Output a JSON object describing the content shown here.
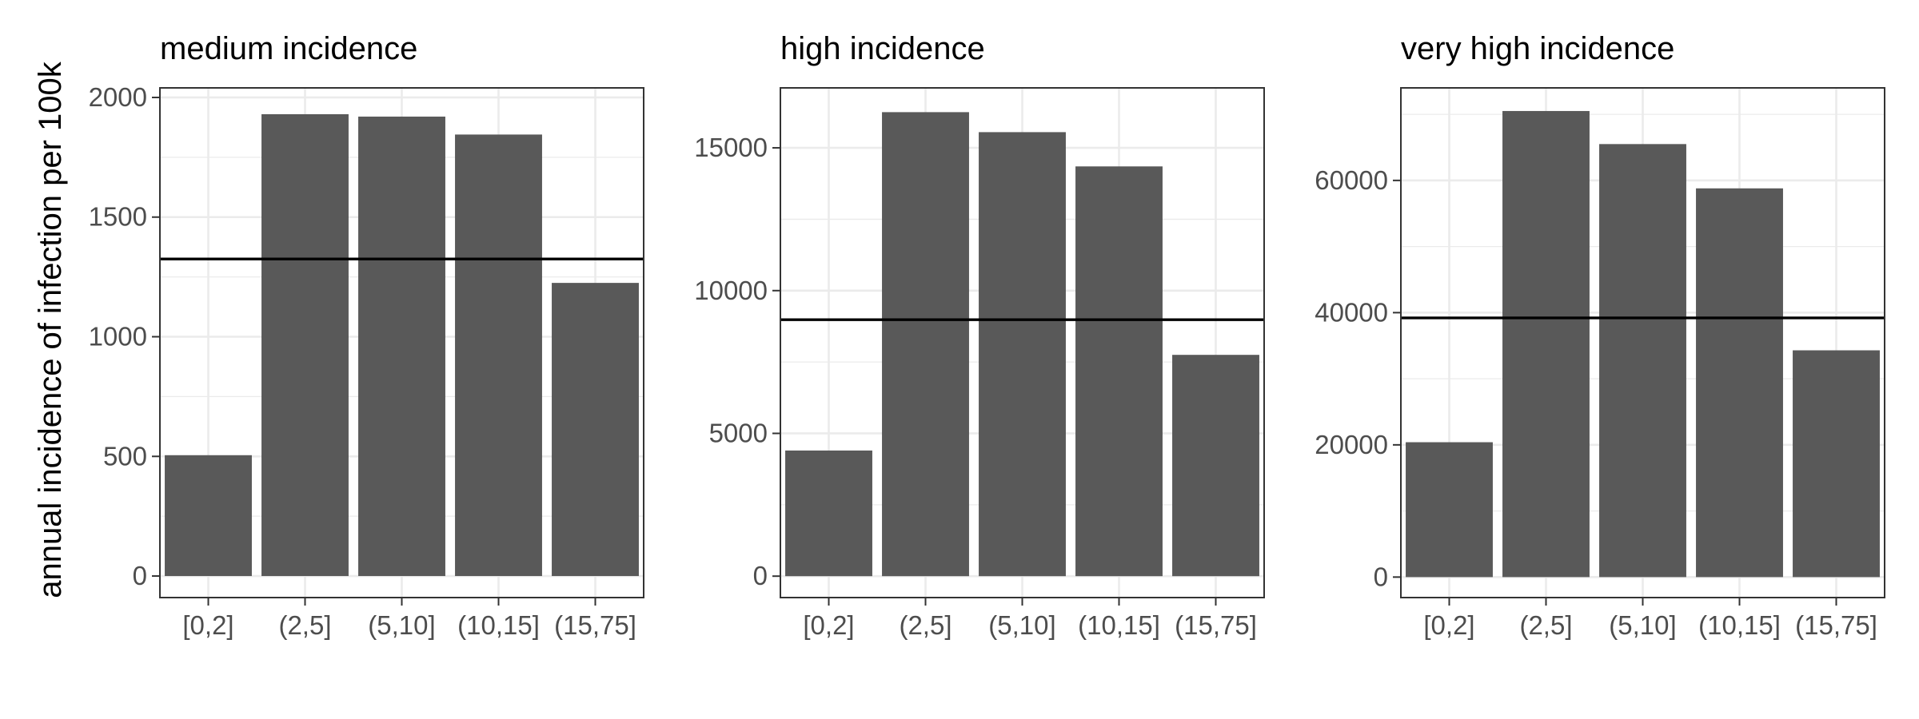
{
  "chart_data": [
    {
      "type": "bar",
      "title": "medium incidence",
      "ylabel": "annual incidence of infection per 100k",
      "xlabel": "",
      "categories": [
        "[0,2]",
        "(2,5]",
        "(5,10]",
        "(10,15]",
        "(15,75]"
      ],
      "values": [
        505,
        1930,
        1920,
        1845,
        1225
      ],
      "ylim": [
        -90,
        2040
      ],
      "yticks": [
        0,
        500,
        1000,
        1500,
        2000
      ],
      "yticklabels": [
        "0",
        "500",
        "1000",
        "1500",
        "2000"
      ],
      "hline": 1325,
      "bar_color": "#595959",
      "grid": true
    },
    {
      "type": "bar",
      "title": "high incidence",
      "ylabel": "",
      "xlabel": "",
      "categories": [
        "[0,2]",
        "(2,5]",
        "(5,10]",
        "(10,15]",
        "(15,75]"
      ],
      "values": [
        4400,
        16250,
        15550,
        14350,
        7750
      ],
      "ylim": [
        -750,
        17100
      ],
      "yticks": [
        0,
        5000,
        10000,
        15000
      ],
      "yticklabels": [
        "0",
        "5000",
        "10000",
        "15000"
      ],
      "hline": 8980,
      "bar_color": "#595959",
      "grid": true
    },
    {
      "type": "bar",
      "title": "very high incidence",
      "ylabel": "",
      "xlabel": "",
      "categories": [
        "[0,2]",
        "(2,5]",
        "(5,10]",
        "(10,15]",
        "(15,75]"
      ],
      "values": [
        20400,
        70500,
        65500,
        58800,
        34300
      ],
      "ylim": [
        -3100,
        74000
      ],
      "yticks": [
        0,
        20000,
        40000,
        60000
      ],
      "yticklabels": [
        "0",
        "20000",
        "40000",
        "60000"
      ],
      "hline": 39200,
      "bar_color": "#595959",
      "grid": true
    }
  ]
}
